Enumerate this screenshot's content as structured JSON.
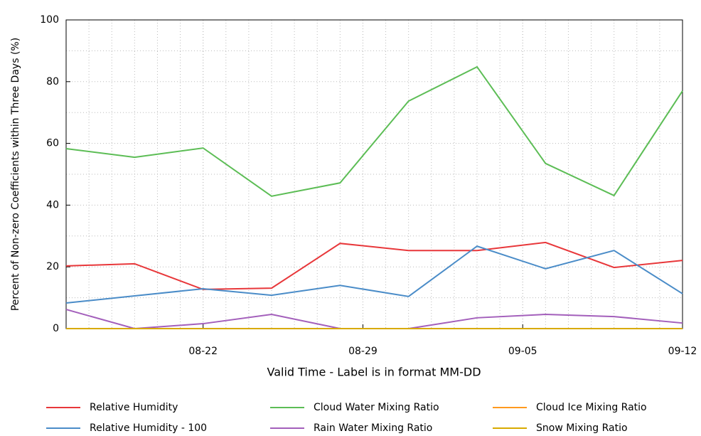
{
  "chart_data": {
    "type": "line",
    "ylabel": "Percent of Non-zero Coefficients within Three Days (%)",
    "xlabel": "Valid Time - Label is in format MM-DD",
    "x": [
      "08-16",
      "08-19",
      "08-22",
      "08-25",
      "08-28",
      "08-31",
      "09-03",
      "09-06",
      "09-09",
      "09-12"
    ],
    "xlim": [
      "08-16",
      "09-12"
    ],
    "xticks": [
      "08-22",
      "08-29",
      "09-05",
      "09-12"
    ],
    "ylim": [
      0,
      100
    ],
    "yticks": [
      0,
      20,
      40,
      60,
      80,
      100
    ],
    "grid": true,
    "series": [
      {
        "name": "Relative Humidity",
        "color": "#e8373a",
        "values": [
          20.3,
          21,
          12.7,
          13.1,
          27.6,
          25.3,
          25.3,
          27.9,
          19.8,
          22.1
        ]
      },
      {
        "name": "Relative Humidity - 100",
        "color": "#4a8cc8",
        "values": [
          8.3,
          10.6,
          12.9,
          10.8,
          14,
          10.4,
          26.7,
          19.4,
          25.3,
          11.3
        ]
      },
      {
        "name": "Cloud Water Mixing Ratio",
        "color": "#5cbd55",
        "values": [
          58.3,
          55.5,
          58.5,
          42.9,
          47.2,
          73.7,
          84.8,
          53.5,
          43.1,
          77
        ]
      },
      {
        "name": "Rain Water Mixing Ratio",
        "color": "#a35fbb",
        "values": [
          6.2,
          0,
          1.6,
          4.6,
          0,
          0,
          3.5,
          4.6,
          3.9,
          1.8
        ]
      },
      {
        "name": "Cloud Ice Mixing Ratio",
        "color": "#ff9a1f",
        "values": [
          0,
          0,
          0,
          0,
          0,
          0,
          0,
          0,
          0,
          0
        ]
      },
      {
        "name": "Snow Mixing Ratio",
        "color": "#d8aa00",
        "values": [
          0,
          0,
          0,
          0,
          0,
          0,
          0,
          0,
          0,
          0
        ]
      }
    ]
  }
}
